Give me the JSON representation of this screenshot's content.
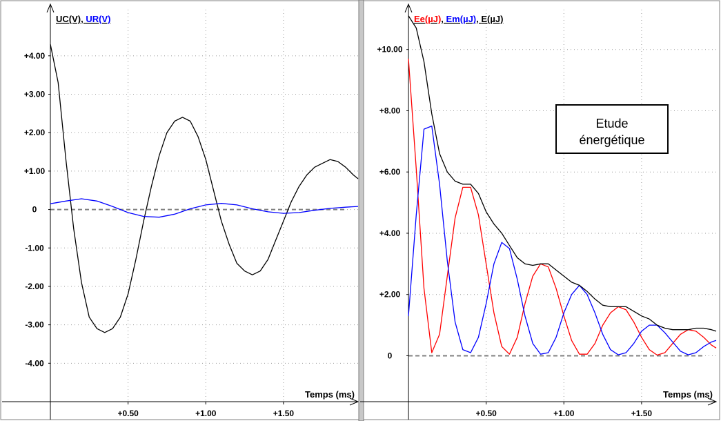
{
  "chart_data": [
    {
      "type": "line",
      "panel": "left",
      "xlabel": "Temps (ms)",
      "x_tick_labels": [
        "+0.50",
        "+1.00",
        "+1.50"
      ],
      "x_ticks": [
        0.5,
        1.0,
        1.5
      ],
      "xlim": [
        0,
        1.98
      ],
      "y_tick_labels": [
        "+4.00",
        "+3.00",
        "+2.00",
        "+1.00",
        "0",
        "-1.00",
        "-2.00",
        "-3.00",
        "-4.00"
      ],
      "y_ticks": [
        4,
        3,
        2,
        1,
        0,
        -1,
        -2,
        -3,
        -4
      ],
      "ylim": [
        -5.0,
        5.2
      ],
      "grid": true,
      "legend_position": "top-left",
      "series": [
        {
          "name": "UC(V)",
          "color": "#000000",
          "x": [
            0,
            0.05,
            0.1,
            0.15,
            0.2,
            0.25,
            0.3,
            0.35,
            0.4,
            0.45,
            0.5,
            0.55,
            0.6,
            0.65,
            0.7,
            0.75,
            0.8,
            0.85,
            0.9,
            0.95,
            1.0,
            1.05,
            1.1,
            1.15,
            1.2,
            1.25,
            1.3,
            1.35,
            1.4,
            1.45,
            1.5,
            1.55,
            1.6,
            1.65,
            1.7,
            1.75,
            1.8,
            1.85,
            1.9,
            1.95,
            1.98
          ],
          "y": [
            4.3,
            3.3,
            1.3,
            -0.5,
            -1.9,
            -2.8,
            -3.1,
            -3.2,
            -3.1,
            -2.8,
            -2.2,
            -1.3,
            -0.3,
            0.6,
            1.4,
            2.0,
            2.3,
            2.4,
            2.3,
            1.9,
            1.3,
            0.5,
            -0.3,
            -0.9,
            -1.4,
            -1.6,
            -1.7,
            -1.6,
            -1.3,
            -0.8,
            -0.3,
            0.2,
            0.6,
            0.9,
            1.1,
            1.2,
            1.3,
            1.25,
            1.1,
            0.9,
            0.8
          ]
        },
        {
          "name": "UR(V)",
          "color": "#0000ff",
          "x": [
            0,
            0.1,
            0.2,
            0.3,
            0.4,
            0.5,
            0.6,
            0.7,
            0.8,
            0.9,
            1.0,
            1.1,
            1.2,
            1.3,
            1.4,
            1.5,
            1.6,
            1.7,
            1.8,
            1.9,
            1.98
          ],
          "y": [
            0.15,
            0.22,
            0.28,
            0.22,
            0.08,
            -0.08,
            -0.18,
            -0.2,
            -0.12,
            0.02,
            0.12,
            0.16,
            0.12,
            0.02,
            -0.06,
            -0.1,
            -0.08,
            -0.02,
            0.03,
            0.06,
            0.08
          ]
        }
      ],
      "reference_line": {
        "y": 0,
        "style": "dashed",
        "color": "#808080"
      }
    },
    {
      "type": "line",
      "panel": "right",
      "xlabel": "Temps (ms)",
      "x_tick_labels": [
        "+0.50",
        "+1.00",
        "+1.50"
      ],
      "x_ticks": [
        0.5,
        1.0,
        1.5
      ],
      "xlim": [
        0,
        1.98
      ],
      "y_tick_labels": [
        "+10.00",
        "+8.00",
        "+6.00",
        "+4.00",
        "+2.00",
        "0"
      ],
      "y_ticks": [
        10,
        8,
        6,
        4,
        2,
        0
      ],
      "ylim": [
        -1.5,
        11.3
      ],
      "grid": true,
      "legend_position": "top-left",
      "annotation": "Etude énergétique",
      "series": [
        {
          "name": "Ee(µJ)",
          "color": "#ff0000",
          "x": [
            0,
            0.05,
            0.1,
            0.15,
            0.2,
            0.25,
            0.3,
            0.35,
            0.4,
            0.45,
            0.5,
            0.55,
            0.6,
            0.65,
            0.7,
            0.75,
            0.8,
            0.85,
            0.9,
            0.95,
            1.0,
            1.05,
            1.1,
            1.15,
            1.2,
            1.25,
            1.3,
            1.35,
            1.4,
            1.45,
            1.5,
            1.55,
            1.6,
            1.65,
            1.7,
            1.75,
            1.8,
            1.85,
            1.9,
            1.95,
            1.98
          ],
          "y": [
            9.7,
            6.1,
            2.2,
            0.1,
            0.7,
            2.6,
            4.5,
            5.5,
            5.5,
            4.6,
            3.0,
            1.4,
            0.3,
            0.05,
            0.6,
            1.7,
            2.6,
            3.0,
            2.9,
            2.2,
            1.3,
            0.5,
            0.05,
            0.05,
            0.4,
            1.0,
            1.4,
            1.6,
            1.5,
            1.1,
            0.6,
            0.2,
            0.02,
            0.1,
            0.4,
            0.7,
            0.85,
            0.8,
            0.6,
            0.35,
            0.25
          ]
        },
        {
          "name": "Em(µJ)",
          "color": "#0000ff",
          "x": [
            0,
            0.05,
            0.1,
            0.15,
            0.2,
            0.25,
            0.3,
            0.35,
            0.4,
            0.45,
            0.5,
            0.55,
            0.6,
            0.65,
            0.7,
            0.75,
            0.8,
            0.85,
            0.9,
            0.95,
            1.0,
            1.05,
            1.1,
            1.15,
            1.2,
            1.25,
            1.3,
            1.35,
            1.4,
            1.45,
            1.5,
            1.55,
            1.6,
            1.65,
            1.7,
            1.75,
            1.8,
            1.85,
            1.9,
            1.95,
            1.98
          ],
          "y": [
            1.3,
            4.6,
            7.4,
            7.5,
            5.6,
            3.1,
            1.1,
            0.2,
            0.1,
            0.6,
            1.7,
            3.0,
            3.7,
            3.5,
            2.5,
            1.3,
            0.4,
            0.05,
            0.1,
            0.6,
            1.4,
            2.0,
            2.3,
            2.0,
            1.4,
            0.7,
            0.2,
            0.03,
            0.1,
            0.4,
            0.8,
            1.0,
            1.0,
            0.75,
            0.45,
            0.15,
            0.03,
            0.1,
            0.3,
            0.45,
            0.5
          ]
        },
        {
          "name": "E(µJ)",
          "color": "#000000",
          "x": [
            0,
            0.05,
            0.1,
            0.15,
            0.2,
            0.25,
            0.3,
            0.35,
            0.4,
            0.45,
            0.5,
            0.55,
            0.6,
            0.65,
            0.7,
            0.75,
            0.8,
            0.85,
            0.9,
            0.95,
            1.0,
            1.05,
            1.1,
            1.15,
            1.2,
            1.25,
            1.3,
            1.35,
            1.4,
            1.45,
            1.5,
            1.55,
            1.6,
            1.65,
            1.7,
            1.75,
            1.8,
            1.85,
            1.9,
            1.95,
            1.98
          ],
          "y": [
            11.1,
            10.7,
            9.6,
            7.9,
            6.6,
            6.0,
            5.7,
            5.6,
            5.6,
            5.3,
            4.7,
            4.3,
            4.0,
            3.6,
            3.2,
            3.0,
            2.95,
            3.0,
            3.0,
            2.8,
            2.6,
            2.4,
            2.3,
            2.1,
            1.85,
            1.65,
            1.6,
            1.6,
            1.6,
            1.45,
            1.3,
            1.2,
            1.0,
            0.9,
            0.85,
            0.85,
            0.85,
            0.9,
            0.9,
            0.85,
            0.8
          ]
        }
      ],
      "reference_line": {
        "y": 0,
        "style": "dashed",
        "color": "#808080"
      }
    }
  ]
}
